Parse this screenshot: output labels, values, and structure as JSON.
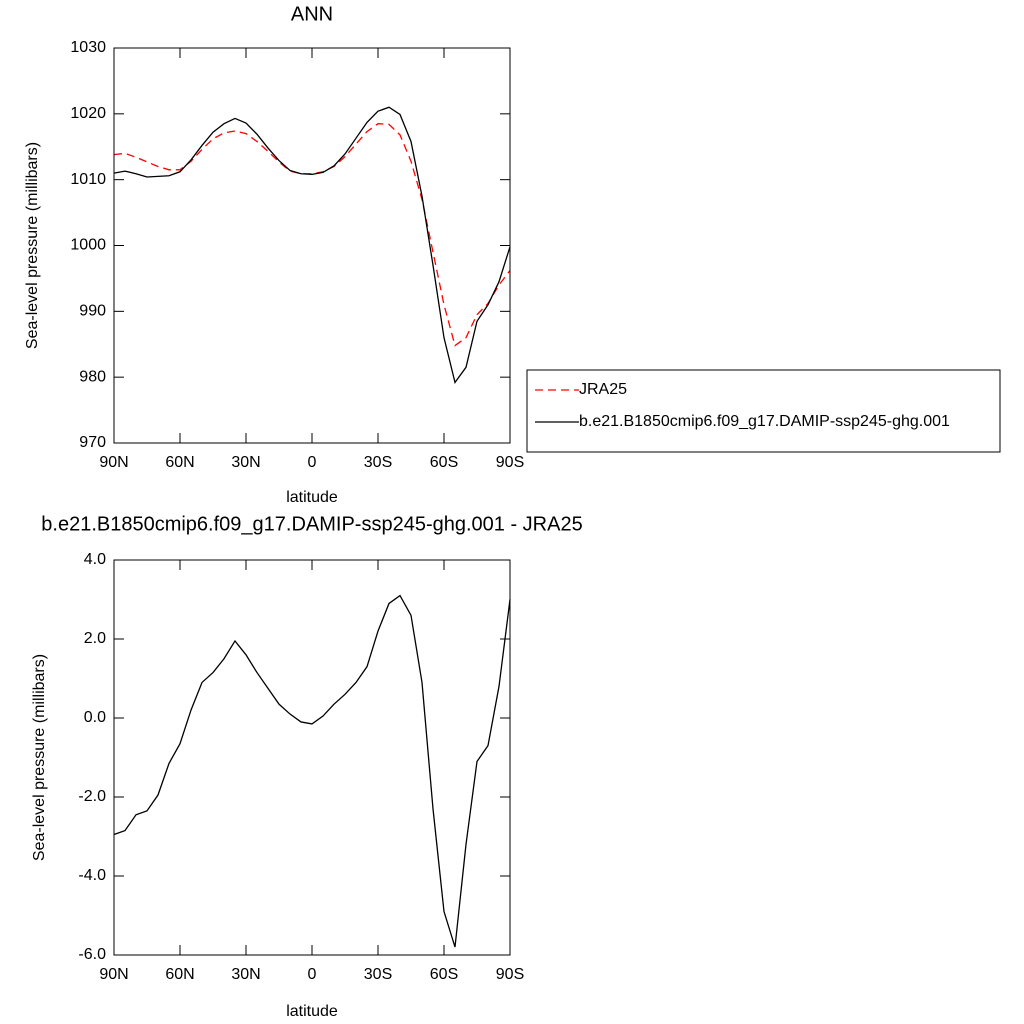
{
  "chart_data": [
    {
      "type": "line",
      "title": "ANN",
      "xlabel": "latitude",
      "ylabel": "Sea-level pressure (millibars)",
      "x": [
        90,
        85,
        80,
        75,
        70,
        65,
        60,
        55,
        50,
        45,
        40,
        35,
        30,
        25,
        20,
        15,
        10,
        5,
        0,
        -5,
        -10,
        -15,
        -20,
        -25,
        -30,
        -35,
        -40,
        -45,
        -50,
        -55,
        -60,
        -65,
        -70,
        -75,
        -80,
        -85,
        -90
      ],
      "series": [
        {
          "name": "JRA25",
          "color": "#ff0000",
          "dashed": true,
          "values": [
            1013.8,
            1014.0,
            1013.4,
            1012.7,
            1012.0,
            1011.5,
            1011.5,
            1012.8,
            1014.6,
            1016.2,
            1017.1,
            1017.4,
            1017.0,
            1015.8,
            1014.3,
            1012.7,
            1011.3,
            1010.9,
            1010.9,
            1011.2,
            1012.0,
            1013.5,
            1015.4,
            1017.3,
            1018.5,
            1018.4,
            1016.8,
            1012.8,
            1007.0,
            999.0,
            991.0,
            984.8,
            986.0,
            989.5,
            991.2,
            994.0,
            996.2
          ]
        },
        {
          "name": "b.e21.B1850cmip6.f09_g17.DAMIP-ssp245-ghg.001",
          "color": "#000000",
          "dashed": false,
          "values": [
            1011.0,
            1011.3,
            1010.9,
            1010.4,
            1010.5,
            1010.6,
            1011.2,
            1013.0,
            1015.2,
            1017.2,
            1018.5,
            1019.3,
            1018.6,
            1016.9,
            1014.8,
            1012.9,
            1011.4,
            1010.9,
            1010.8,
            1011.1,
            1012.1,
            1013.9,
            1016.3,
            1018.7,
            1020.4,
            1021.0,
            1019.9,
            1015.8,
            1007.5,
            997.0,
            986.0,
            979.2,
            981.5,
            988.5,
            991.0,
            994.5,
            999.8
          ]
        }
      ],
      "xlim": [
        90,
        -90
      ],
      "xticks": [
        {
          "value": 90,
          "label": "90N"
        },
        {
          "value": 60,
          "label": "60N"
        },
        {
          "value": 30,
          "label": "30N"
        },
        0,
        {
          "value": -30,
          "label": "30S"
        },
        {
          "value": -60,
          "label": "60S"
        },
        {
          "value": -90,
          "label": "90S"
        }
      ],
      "ylim": [
        970,
        1030
      ],
      "yticks": [
        970,
        980,
        990,
        1000,
        1010,
        1020,
        1030
      ],
      "legend": "right"
    },
    {
      "type": "line",
      "title": "b.e21.B1850cmip6.f09_g17.DAMIP-ssp245-ghg.001 - JRA25",
      "xlabel": "latitude",
      "ylabel": "Sea-level pressure (millibars)",
      "x": [
        90,
        85,
        80,
        75,
        70,
        65,
        60,
        55,
        50,
        45,
        40,
        35,
        30,
        25,
        20,
        15,
        10,
        5,
        0,
        -5,
        -10,
        -15,
        -20,
        -25,
        -30,
        -35,
        -40,
        -45,
        -50,
        -55,
        -60,
        -65,
        -70,
        -75,
        -80,
        -85,
        -90
      ],
      "series": [
        {
          "color": "#000000",
          "dashed": false,
          "values": [
            -2.95,
            -2.85,
            -2.45,
            -2.35,
            -1.95,
            -1.15,
            -0.65,
            0.2,
            0.9,
            1.15,
            1.5,
            1.95,
            1.6,
            1.15,
            0.75,
            0.35,
            0.1,
            -0.1,
            -0.15,
            0.05,
            0.35,
            0.6,
            0.9,
            1.3,
            2.2,
            2.9,
            3.1,
            2.6,
            0.9,
            -2.3,
            -4.9,
            -5.8,
            -3.2,
            -1.1,
            -0.7,
            0.8,
            3.0
          ]
        }
      ],
      "xlim": [
        90,
        -90
      ],
      "xticks": [
        {
          "value": 90,
          "label": "90N"
        },
        {
          "value": 60,
          "label": "60N"
        },
        {
          "value": 30,
          "label": "30N"
        },
        0,
        {
          "value": -30,
          "label": "30S"
        },
        {
          "value": -60,
          "label": "60S"
        },
        {
          "value": -90,
          "label": "90S"
        }
      ],
      "ylim": [
        -6,
        4
      ],
      "yticks": [
        {
          "value": -6,
          "label": "-6.0"
        },
        {
          "value": -4,
          "label": "-4.0"
        },
        {
          "value": -2,
          "label": "-2.0"
        },
        {
          "value": 0,
          "label": "0.0"
        },
        {
          "value": 2,
          "label": "2.0"
        },
        {
          "value": 4,
          "label": "4.0"
        }
      ]
    }
  ]
}
